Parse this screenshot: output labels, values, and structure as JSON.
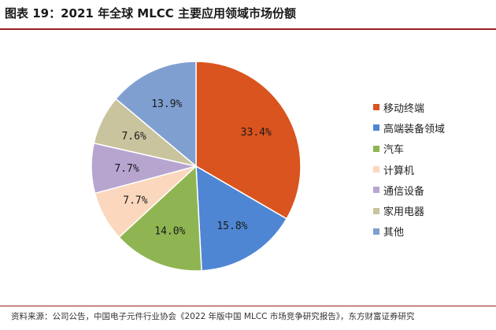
{
  "figure": {
    "title": "图表 19：2021 年全球 MLCC 主要应用领域市场份额",
    "source": "资料来源：公司公告，中国电子元件行业协会《2022 年版中国 MLCC 市场竞争研究报告》，东方财富证券研究"
  },
  "chart_data": {
    "type": "pie",
    "title": "",
    "start_angle_deg": 0,
    "direction": "clockwise",
    "legend_position": "right",
    "slices": [
      {
        "name": "移动终端",
        "value": 33.4,
        "label": "33.4%",
        "color": "#d9541e"
      },
      {
        "name": "高端装备领域",
        "value": 15.8,
        "label": "15.8%",
        "color": "#4f86d4"
      },
      {
        "name": "汽车",
        "value": 14.0,
        "label": "14.0%",
        "color": "#8fb552"
      },
      {
        "name": "计算机",
        "value": 7.7,
        "label": "7.7%",
        "color": "#fbd7bd"
      },
      {
        "name": "通信设备",
        "value": 7.7,
        "label": "7.7%",
        "color": "#b7a5d0"
      },
      {
        "name": "家用电器",
        "value": 7.6,
        "label": "7.6%",
        "color": "#c9c39e"
      },
      {
        "name": "其他",
        "value": 13.9,
        "label": "13.9%",
        "color": "#7f9fd0"
      }
    ]
  }
}
